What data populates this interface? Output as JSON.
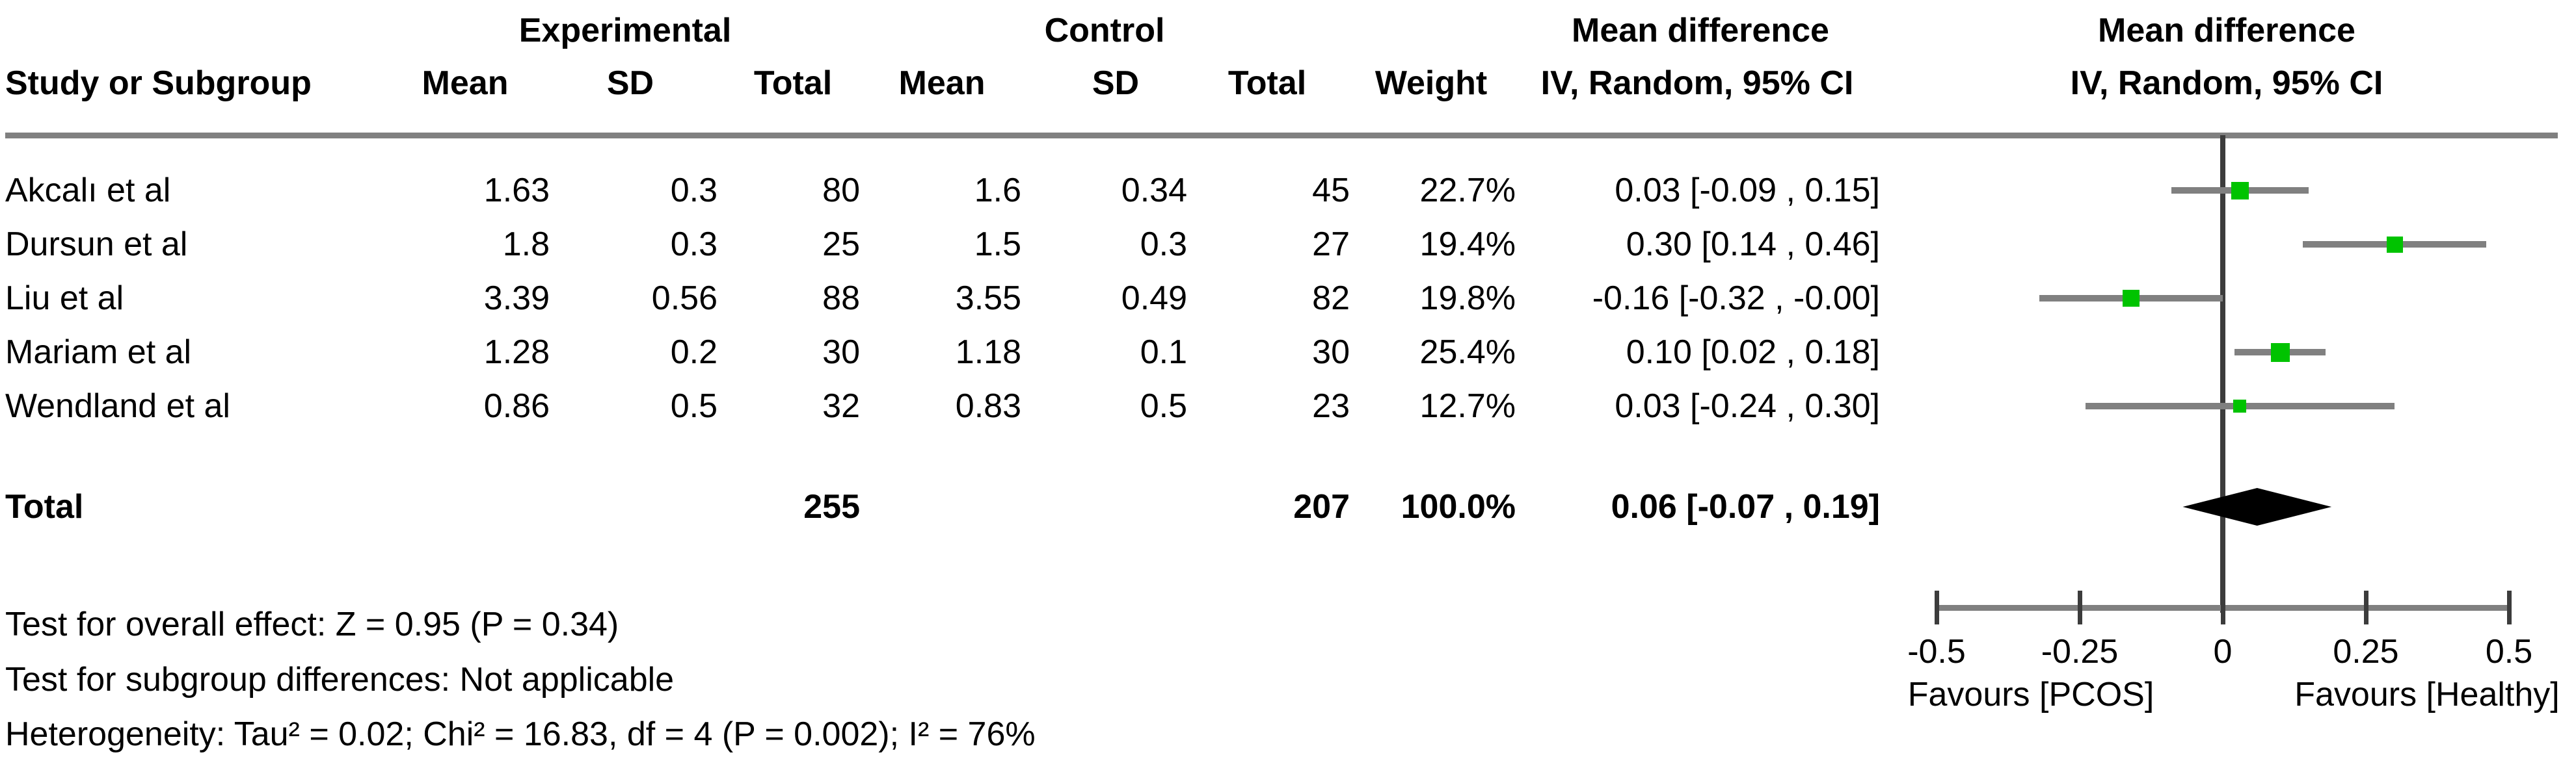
{
  "header": {
    "study_col": "Study or Subgroup",
    "group1": "Experimental",
    "group2": "Control",
    "mean": "Mean",
    "sd": "SD",
    "total": "Total",
    "weight": "Weight",
    "effect_title": "Mean difference",
    "effect_subtitle": "IV, Random, 95% CI",
    "plot_title": "Mean difference",
    "plot_subtitle": "IV, Random, 95% CI"
  },
  "studies": [
    {
      "name": "Akcalı et al",
      "exp_mean": "1.63",
      "exp_sd": "0.3",
      "exp_total": "80",
      "ctrl_mean": "1.6",
      "ctrl_sd": "0.34",
      "ctrl_total": "45",
      "weight": "22.7%",
      "ci_text": "0.03 [-0.09 , 0.15]",
      "md": 0.03,
      "ci_low": -0.09,
      "ci_high": 0.15,
      "weight_value": 22.7
    },
    {
      "name": "Dursun et al",
      "exp_mean": "1.8",
      "exp_sd": "0.3",
      "exp_total": "25",
      "ctrl_mean": "1.5",
      "ctrl_sd": "0.3",
      "ctrl_total": "27",
      "weight": "19.4%",
      "ci_text": "0.30 [0.14 , 0.46]",
      "md": 0.3,
      "ci_low": 0.14,
      "ci_high": 0.46,
      "weight_value": 19.4
    },
    {
      "name": "Liu et al",
      "exp_mean": "3.39",
      "exp_sd": "0.56",
      "exp_total": "88",
      "ctrl_mean": "3.55",
      "ctrl_sd": "0.49",
      "ctrl_total": "82",
      "weight": "19.8%",
      "ci_text": "-0.16 [-0.32 , -0.00]",
      "md": -0.16,
      "ci_low": -0.32,
      "ci_high": 0,
      "weight_value": 19.8
    },
    {
      "name": "Mariam et al",
      "exp_mean": "1.28",
      "exp_sd": "0.2",
      "exp_total": "30",
      "ctrl_mean": "1.18",
      "ctrl_sd": "0.1",
      "ctrl_total": "30",
      "weight": "25.4%",
      "ci_text": "0.10 [0.02 , 0.18]",
      "md": 0.1,
      "ci_low": 0.02,
      "ci_high": 0.18,
      "weight_value": 25.4
    },
    {
      "name": "Wendland et al",
      "exp_mean": "0.86",
      "exp_sd": "0.5",
      "exp_total": "32",
      "ctrl_mean": "0.83",
      "ctrl_sd": "0.5",
      "ctrl_total": "23",
      "weight": "12.7%",
      "ci_text": "0.03 [-0.24 , 0.30]",
      "md": 0.03,
      "ci_low": -0.24,
      "ci_high": 0.3,
      "weight_value": 12.7
    }
  ],
  "total": {
    "label": "Total",
    "exp_total": "255",
    "ctrl_total": "207",
    "weight": "100.0%",
    "ci_text": "0.06 [-0.07 , 0.19]",
    "md": 0.06,
    "ci_low": -0.07,
    "ci_high": 0.19
  },
  "footer": {
    "overall_effect": "Test for overall effect: Z = 0.95 (P = 0.34)",
    "subgroup": "Test for subgroup differences: Not applicable",
    "heterogeneity": "Heterogeneity: Tau² = 0.02; Chi² = 16.83, df = 4 (P = 0.002); I² = 76%"
  },
  "axis": {
    "ticks": [
      {
        "value": -0.5,
        "label": "-0.5"
      },
      {
        "value": -0.25,
        "label": "-0.25"
      },
      {
        "value": 0,
        "label": "0"
      },
      {
        "value": 0.25,
        "label": "0.25"
      },
      {
        "value": 0.5,
        "label": "0.5"
      }
    ],
    "favours_left": "Favours [PCOS]",
    "favours_right": "Favours [Healthy]"
  },
  "colors": {
    "marker_green": "#00c300",
    "ci_line": "#808080",
    "axis_line": "#808080",
    "divider": "#808080",
    "zero_line": "#3c3c3c",
    "diamond": "#000000"
  },
  "chart_data": {
    "type": "scatter",
    "subtype": "forest-plot",
    "effect_measure": "Mean difference (IV, Random, 95% CI)",
    "x": [
      0.03,
      0.3,
      -0.16,
      0.1,
      0.03
    ],
    "categories": [
      "Akcalı et al",
      "Dursun et al",
      "Liu et al",
      "Mariam et al",
      "Wendland et al"
    ],
    "series": [
      {
        "name": "Akcalı et al",
        "md": 0.03,
        "ci": [
          -0.09,
          0.15
        ],
        "weight_pct": 22.7,
        "exp": {
          "mean": 1.63,
          "sd": 0.3,
          "n": 80
        },
        "ctrl": {
          "mean": 1.6,
          "sd": 0.34,
          "n": 45
        }
      },
      {
        "name": "Dursun et al",
        "md": 0.3,
        "ci": [
          0.14,
          0.46
        ],
        "weight_pct": 19.4,
        "exp": {
          "mean": 1.8,
          "sd": 0.3,
          "n": 25
        },
        "ctrl": {
          "mean": 1.5,
          "sd": 0.3,
          "n": 27
        }
      },
      {
        "name": "Liu et al",
        "md": -0.16,
        "ci": [
          -0.32,
          -0.0
        ],
        "weight_pct": 19.8,
        "exp": {
          "mean": 3.39,
          "sd": 0.56,
          "n": 88
        },
        "ctrl": {
          "mean": 3.55,
          "sd": 0.49,
          "n": 82
        }
      },
      {
        "name": "Mariam et al",
        "md": 0.1,
        "ci": [
          0.02,
          0.18
        ],
        "weight_pct": 25.4,
        "exp": {
          "mean": 1.28,
          "sd": 0.2,
          "n": 30
        },
        "ctrl": {
          "mean": 1.18,
          "sd": 0.1,
          "n": 30
        }
      },
      {
        "name": "Wendland et al",
        "md": 0.03,
        "ci": [
          -0.24,
          0.3
        ],
        "weight_pct": 12.7,
        "exp": {
          "mean": 0.86,
          "sd": 0.5,
          "n": 32
        },
        "ctrl": {
          "mean": 0.83,
          "sd": 0.5,
          "n": 23
        }
      }
    ],
    "pooled": {
      "md": 0.06,
      "ci": [
        -0.07,
        0.19
      ],
      "n_exp": 255,
      "n_ctrl": 207,
      "weight_pct": 100.0
    },
    "xlabel_left": "Favours [PCOS]",
    "xlabel_right": "Favours [Healthy]",
    "xlim": [
      -0.5,
      0.5
    ],
    "xticks": [
      -0.5,
      -0.25,
      0,
      0.25,
      0.5
    ],
    "grid": false,
    "legend": false
  }
}
